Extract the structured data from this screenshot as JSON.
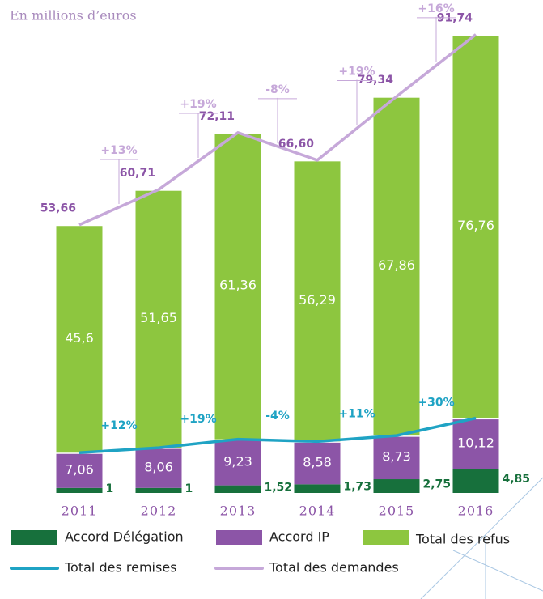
{
  "chart_data": {
    "type": "bar",
    "title": "En millions d’euros",
    "categories": [
      "2011",
      "2012",
      "2013",
      "2014",
      "2015",
      "2016"
    ],
    "ylim": [
      0,
      98
    ],
    "series": [
      {
        "name": "Accord Délégation",
        "type": "bar",
        "color": "#17703c",
        "values": [
          1,
          1,
          1.52,
          1.73,
          2.75,
          4.85
        ],
        "value_labels": [
          "1",
          "1",
          "1,52",
          "1,73",
          "2,75",
          "4,85"
        ]
      },
      {
        "name": "Accord IP",
        "type": "bar",
        "color": "#8c55a7",
        "values": [
          7.06,
          8.06,
          9.23,
          8.58,
          8.73,
          10.12
        ],
        "value_labels": [
          "7,06",
          "8,06",
          "9,23",
          "8,58",
          "8,73",
          "10,12"
        ]
      },
      {
        "name": "Total des refus",
        "type": "bar",
        "color": "#8dc63f",
        "values": [
          45.6,
          51.65,
          61.36,
          56.29,
          67.86,
          76.76
        ],
        "value_labels": [
          "45,6",
          "51,65",
          "61,36",
          "56,29",
          "67,86",
          "76,76"
        ]
      },
      {
        "name": "Total des remises",
        "type": "line",
        "color": "#1fa3c4",
        "values": [
          8.06,
          9.06,
          10.75,
          10.31,
          11.48,
          14.97
        ],
        "change_labels": [
          "+12%",
          "+19%",
          "-4%",
          "+11%",
          "+30%"
        ]
      },
      {
        "name": "Total des demandes",
        "type": "line",
        "color": "#c6a8d9",
        "values": [
          53.66,
          60.71,
          72.11,
          66.6,
          79.34,
          91.74
        ],
        "value_labels": [
          "53,66",
          "60,71",
          "72,11",
          "66,60",
          "79,34",
          "91,74"
        ],
        "change_labels": [
          "+13%",
          "+19%",
          "-8%",
          "+19%",
          "+16%"
        ]
      }
    ]
  }
}
